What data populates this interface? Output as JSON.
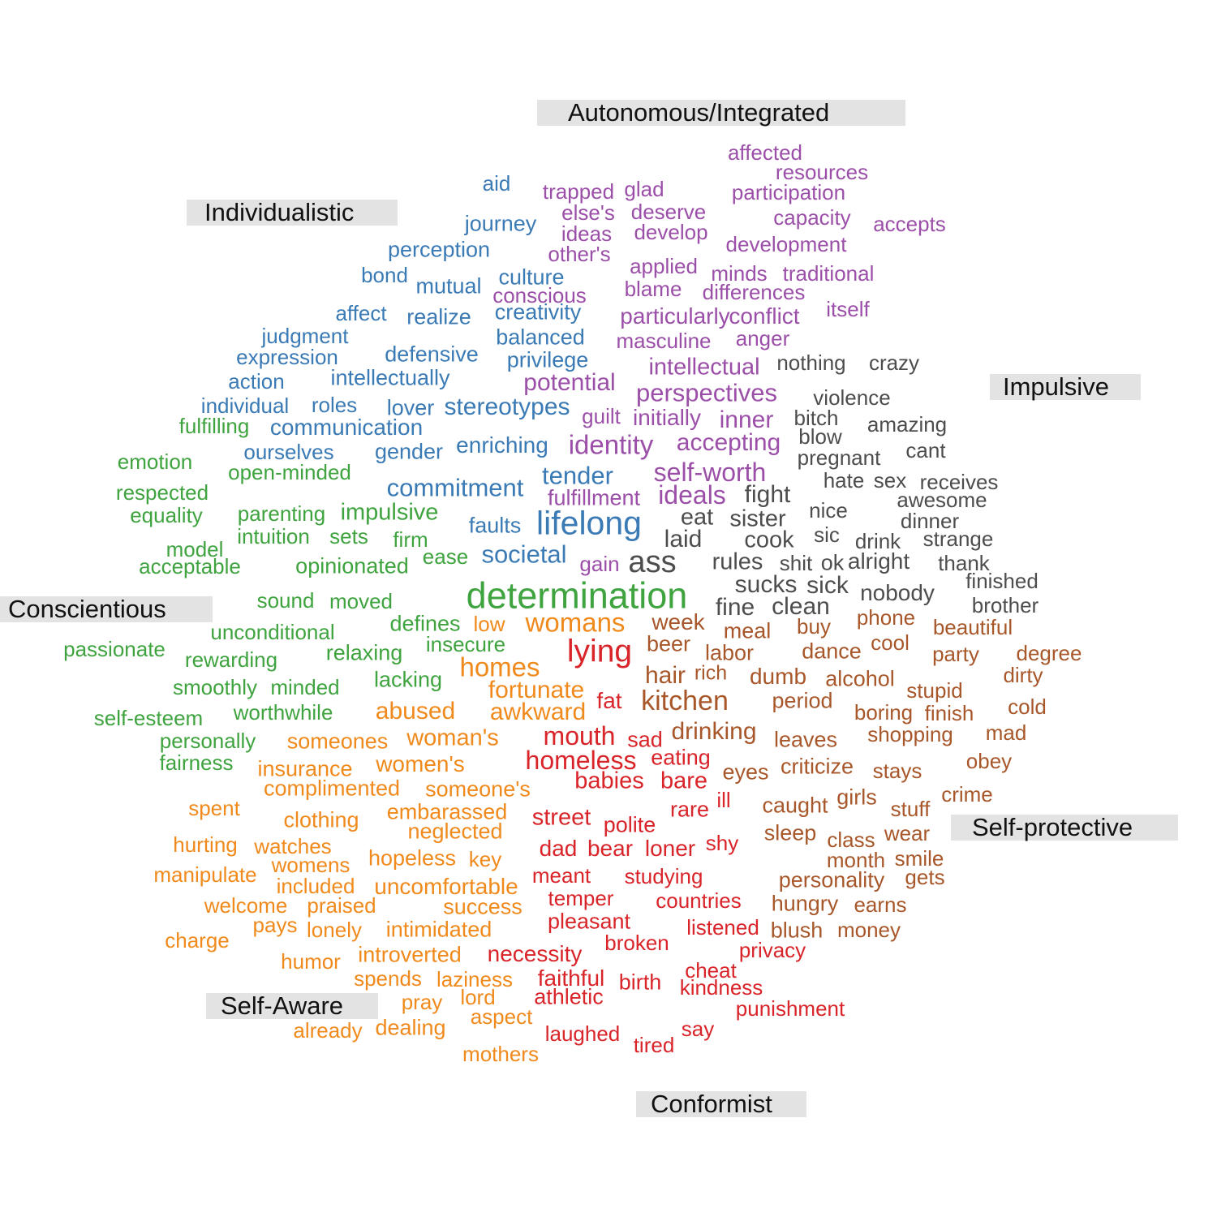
{
  "colors": {
    "blue": "#3a7ab5",
    "purple": "#9b4fa8",
    "gray": "#4d4d4d",
    "green": "#3fa43f",
    "orange": "#f08a1c",
    "brown": "#a8572a",
    "red": "#d9242a"
  },
  "categories": [
    {
      "id": "autonomous",
      "label": "Autonomous/Integrated"
    },
    {
      "id": "individualistic",
      "label": "Individualistic"
    },
    {
      "id": "impulsive",
      "label": "Impulsive"
    },
    {
      "id": "conscientious",
      "label": "Conscientious"
    },
    {
      "id": "self-protective",
      "label": "Self-protective"
    },
    {
      "id": "self-aware",
      "label": "Self-Aware"
    },
    {
      "id": "conformist",
      "label": "Conformist"
    }
  ],
  "words": [
    {
      "t": "aid",
      "c": "blue"
    },
    {
      "t": "journey",
      "c": "blue"
    },
    {
      "t": "perception",
      "c": "blue"
    },
    {
      "t": "bond",
      "c": "blue"
    },
    {
      "t": "mutual",
      "c": "blue"
    },
    {
      "t": "culture",
      "c": "blue"
    },
    {
      "t": "affect",
      "c": "blue"
    },
    {
      "t": "realize",
      "c": "blue"
    },
    {
      "t": "creativity",
      "c": "blue"
    },
    {
      "t": "judgment",
      "c": "blue"
    },
    {
      "t": "balanced",
      "c": "blue"
    },
    {
      "t": "expression",
      "c": "blue"
    },
    {
      "t": "defensive",
      "c": "blue"
    },
    {
      "t": "privilege",
      "c": "blue"
    },
    {
      "t": "action",
      "c": "blue"
    },
    {
      "t": "intellectually",
      "c": "blue"
    },
    {
      "t": "individual",
      "c": "blue"
    },
    {
      "t": "roles",
      "c": "blue"
    },
    {
      "t": "lover",
      "c": "blue"
    },
    {
      "t": "stereotypes",
      "c": "blue"
    },
    {
      "t": "communication",
      "c": "blue"
    },
    {
      "t": "ourselves",
      "c": "blue"
    },
    {
      "t": "gender",
      "c": "blue"
    },
    {
      "t": "enriching",
      "c": "blue"
    },
    {
      "t": "tender",
      "c": "blue"
    },
    {
      "t": "commitment",
      "c": "blue"
    },
    {
      "t": "lifelong",
      "c": "blue"
    },
    {
      "t": "faults",
      "c": "blue"
    },
    {
      "t": "societal",
      "c": "blue"
    },
    {
      "t": "affected",
      "c": "purple"
    },
    {
      "t": "resources",
      "c": "purple"
    },
    {
      "t": "trapped",
      "c": "purple"
    },
    {
      "t": "glad",
      "c": "purple"
    },
    {
      "t": "participation",
      "c": "purple"
    },
    {
      "t": "else's",
      "c": "purple"
    },
    {
      "t": "deserve",
      "c": "purple"
    },
    {
      "t": "capacity",
      "c": "purple"
    },
    {
      "t": "accepts",
      "c": "purple"
    },
    {
      "t": "ideas",
      "c": "purple"
    },
    {
      "t": "develop",
      "c": "purple"
    },
    {
      "t": "development",
      "c": "purple"
    },
    {
      "t": "other's",
      "c": "purple"
    },
    {
      "t": "applied",
      "c": "purple"
    },
    {
      "t": "minds",
      "c": "purple"
    },
    {
      "t": "traditional",
      "c": "purple"
    },
    {
      "t": "conscious",
      "c": "purple"
    },
    {
      "t": "blame",
      "c": "purple"
    },
    {
      "t": "differences",
      "c": "purple"
    },
    {
      "t": "particularly",
      "c": "purple"
    },
    {
      "t": "conflict",
      "c": "purple"
    },
    {
      "t": "itself",
      "c": "purple"
    },
    {
      "t": "masculine",
      "c": "purple"
    },
    {
      "t": "anger",
      "c": "purple"
    },
    {
      "t": "intellectual",
      "c": "purple"
    },
    {
      "t": "potential",
      "c": "purple"
    },
    {
      "t": "perspectives",
      "c": "purple"
    },
    {
      "t": "guilt",
      "c": "purple"
    },
    {
      "t": "initially",
      "c": "purple"
    },
    {
      "t": "inner",
      "c": "purple"
    },
    {
      "t": "identity",
      "c": "purple"
    },
    {
      "t": "accepting",
      "c": "purple"
    },
    {
      "t": "self-worth",
      "c": "purple"
    },
    {
      "t": "fulfillment",
      "c": "purple"
    },
    {
      "t": "ideals",
      "c": "purple"
    },
    {
      "t": "gain",
      "c": "purple"
    },
    {
      "t": "nothing",
      "c": "gray"
    },
    {
      "t": "crazy",
      "c": "gray"
    },
    {
      "t": "violence",
      "c": "gray"
    },
    {
      "t": "bitch",
      "c": "gray"
    },
    {
      "t": "amazing",
      "c": "gray"
    },
    {
      "t": "blow",
      "c": "gray"
    },
    {
      "t": "pregnant",
      "c": "gray"
    },
    {
      "t": "cant",
      "c": "gray"
    },
    {
      "t": "hate",
      "c": "gray"
    },
    {
      "t": "sex",
      "c": "gray"
    },
    {
      "t": "receives",
      "c": "gray"
    },
    {
      "t": "awesome",
      "c": "gray"
    },
    {
      "t": "fight",
      "c": "gray"
    },
    {
      "t": "nice",
      "c": "gray"
    },
    {
      "t": "eat",
      "c": "gray"
    },
    {
      "t": "sister",
      "c": "gray"
    },
    {
      "t": "dinner",
      "c": "gray"
    },
    {
      "t": "laid",
      "c": "gray"
    },
    {
      "t": "cook",
      "c": "gray"
    },
    {
      "t": "sic",
      "c": "gray"
    },
    {
      "t": "drink",
      "c": "gray"
    },
    {
      "t": "strange",
      "c": "gray"
    },
    {
      "t": "ass",
      "c": "gray"
    },
    {
      "t": "rules",
      "c": "gray"
    },
    {
      "t": "shit",
      "c": "gray"
    },
    {
      "t": "ok",
      "c": "gray"
    },
    {
      "t": "alright",
      "c": "gray"
    },
    {
      "t": "thank",
      "c": "gray"
    },
    {
      "t": "finished",
      "c": "gray"
    },
    {
      "t": "sucks",
      "c": "gray"
    },
    {
      "t": "sick",
      "c": "gray"
    },
    {
      "t": "nobody",
      "c": "gray"
    },
    {
      "t": "fine",
      "c": "gray"
    },
    {
      "t": "clean",
      "c": "gray"
    },
    {
      "t": "brother",
      "c": "gray"
    },
    {
      "t": "fulfilling",
      "c": "green"
    },
    {
      "t": "emotion",
      "c": "green"
    },
    {
      "t": "open-minded",
      "c": "green"
    },
    {
      "t": "respected",
      "c": "green"
    },
    {
      "t": "equality",
      "c": "green"
    },
    {
      "t": "parenting",
      "c": "green"
    },
    {
      "t": "impulsive",
      "c": "green"
    },
    {
      "t": "intuition",
      "c": "green"
    },
    {
      "t": "sets",
      "c": "green"
    },
    {
      "t": "firm",
      "c": "green"
    },
    {
      "t": "model",
      "c": "green"
    },
    {
      "t": "acceptable",
      "c": "green"
    },
    {
      "t": "opinionated",
      "c": "green"
    },
    {
      "t": "ease",
      "c": "green"
    },
    {
      "t": "determination",
      "c": "green"
    },
    {
      "t": "sound",
      "c": "green"
    },
    {
      "t": "moved",
      "c": "green"
    },
    {
      "t": "unconditional",
      "c": "green"
    },
    {
      "t": "defines",
      "c": "green"
    },
    {
      "t": "passionate",
      "c": "green"
    },
    {
      "t": "rewarding",
      "c": "green"
    },
    {
      "t": "relaxing",
      "c": "green"
    },
    {
      "t": "insecure",
      "c": "green"
    },
    {
      "t": "lacking",
      "c": "green"
    },
    {
      "t": "smoothly",
      "c": "green"
    },
    {
      "t": "minded",
      "c": "green"
    },
    {
      "t": "worthwhile",
      "c": "green"
    },
    {
      "t": "self-esteem",
      "c": "green"
    },
    {
      "t": "personally",
      "c": "green"
    },
    {
      "t": "fairness",
      "c": "green"
    },
    {
      "t": "low",
      "c": "orange"
    },
    {
      "t": "womans",
      "c": "orange"
    },
    {
      "t": "homes",
      "c": "orange"
    },
    {
      "t": "fortunate",
      "c": "orange"
    },
    {
      "t": "abused",
      "c": "orange"
    },
    {
      "t": "awkward",
      "c": "orange"
    },
    {
      "t": "someones",
      "c": "orange"
    },
    {
      "t": "woman's",
      "c": "orange"
    },
    {
      "t": "insurance",
      "c": "orange"
    },
    {
      "t": "women's",
      "c": "orange"
    },
    {
      "t": "complimented",
      "c": "orange"
    },
    {
      "t": "someone's",
      "c": "orange"
    },
    {
      "t": "spent",
      "c": "orange"
    },
    {
      "t": "clothing",
      "c": "orange"
    },
    {
      "t": "embarassed",
      "c": "orange"
    },
    {
      "t": "neglected",
      "c": "orange"
    },
    {
      "t": "hurting",
      "c": "orange"
    },
    {
      "t": "watches",
      "c": "orange"
    },
    {
      "t": "womens",
      "c": "orange"
    },
    {
      "t": "hopeless",
      "c": "orange"
    },
    {
      "t": "key",
      "c": "orange"
    },
    {
      "t": "manipulate",
      "c": "orange"
    },
    {
      "t": "included",
      "c": "orange"
    },
    {
      "t": "uncomfortable",
      "c": "orange"
    },
    {
      "t": "welcome",
      "c": "orange"
    },
    {
      "t": "praised",
      "c": "orange"
    },
    {
      "t": "success",
      "c": "orange"
    },
    {
      "t": "pays",
      "c": "orange"
    },
    {
      "t": "lonely",
      "c": "orange"
    },
    {
      "t": "intimidated",
      "c": "orange"
    },
    {
      "t": "charge",
      "c": "orange"
    },
    {
      "t": "humor",
      "c": "orange"
    },
    {
      "t": "introverted",
      "c": "orange"
    },
    {
      "t": "spends",
      "c": "orange"
    },
    {
      "t": "laziness",
      "c": "orange"
    },
    {
      "t": "pray",
      "c": "orange"
    },
    {
      "t": "lord",
      "c": "orange"
    },
    {
      "t": "aspect",
      "c": "orange"
    },
    {
      "t": "already",
      "c": "orange"
    },
    {
      "t": "dealing",
      "c": "orange"
    },
    {
      "t": "mothers",
      "c": "orange"
    },
    {
      "t": "week",
      "c": "brown"
    },
    {
      "t": "meal",
      "c": "brown"
    },
    {
      "t": "buy",
      "c": "brown"
    },
    {
      "t": "phone",
      "c": "brown"
    },
    {
      "t": "beautiful",
      "c": "brown"
    },
    {
      "t": "beer",
      "c": "brown"
    },
    {
      "t": "labor",
      "c": "brown"
    },
    {
      "t": "dance",
      "c": "brown"
    },
    {
      "t": "cool",
      "c": "brown"
    },
    {
      "t": "party",
      "c": "brown"
    },
    {
      "t": "degree",
      "c": "brown"
    },
    {
      "t": "hair",
      "c": "brown"
    },
    {
      "t": "rich",
      "c": "brown"
    },
    {
      "t": "dumb",
      "c": "brown"
    },
    {
      "t": "alcohol",
      "c": "brown"
    },
    {
      "t": "stupid",
      "c": "brown"
    },
    {
      "t": "dirty",
      "c": "brown"
    },
    {
      "t": "kitchen",
      "c": "brown"
    },
    {
      "t": "period",
      "c": "brown"
    },
    {
      "t": "boring",
      "c": "brown"
    },
    {
      "t": "finish",
      "c": "brown"
    },
    {
      "t": "cold",
      "c": "brown"
    },
    {
      "t": "drinking",
      "c": "brown"
    },
    {
      "t": "leaves",
      "c": "brown"
    },
    {
      "t": "shopping",
      "c": "brown"
    },
    {
      "t": "mad",
      "c": "brown"
    },
    {
      "t": "eyes",
      "c": "brown"
    },
    {
      "t": "criticize",
      "c": "brown"
    },
    {
      "t": "stays",
      "c": "brown"
    },
    {
      "t": "obey",
      "c": "brown"
    },
    {
      "t": "caught",
      "c": "brown"
    },
    {
      "t": "girls",
      "c": "brown"
    },
    {
      "t": "stuff",
      "c": "brown"
    },
    {
      "t": "crime",
      "c": "brown"
    },
    {
      "t": "sleep",
      "c": "brown"
    },
    {
      "t": "class",
      "c": "brown"
    },
    {
      "t": "wear",
      "c": "brown"
    },
    {
      "t": "month",
      "c": "brown"
    },
    {
      "t": "smile",
      "c": "brown"
    },
    {
      "t": "personality",
      "c": "brown"
    },
    {
      "t": "gets",
      "c": "brown"
    },
    {
      "t": "hungry",
      "c": "brown"
    },
    {
      "t": "earns",
      "c": "brown"
    },
    {
      "t": "blush",
      "c": "brown"
    },
    {
      "t": "money",
      "c": "brown"
    },
    {
      "t": "lying",
      "c": "red"
    },
    {
      "t": "fat",
      "c": "red"
    },
    {
      "t": "mouth",
      "c": "red"
    },
    {
      "t": "sad",
      "c": "red"
    },
    {
      "t": "homeless",
      "c": "red"
    },
    {
      "t": "eating",
      "c": "red"
    },
    {
      "t": "babies",
      "c": "red"
    },
    {
      "t": "bare",
      "c": "red"
    },
    {
      "t": "ill",
      "c": "red"
    },
    {
      "t": "rare",
      "c": "red"
    },
    {
      "t": "street",
      "c": "red"
    },
    {
      "t": "polite",
      "c": "red"
    },
    {
      "t": "shy",
      "c": "red"
    },
    {
      "t": "dad",
      "c": "red"
    },
    {
      "t": "bear",
      "c": "red"
    },
    {
      "t": "loner",
      "c": "red"
    },
    {
      "t": "meant",
      "c": "red"
    },
    {
      "t": "studying",
      "c": "red"
    },
    {
      "t": "temper",
      "c": "red"
    },
    {
      "t": "countries",
      "c": "red"
    },
    {
      "t": "pleasant",
      "c": "red"
    },
    {
      "t": "listened",
      "c": "red"
    },
    {
      "t": "broken",
      "c": "red"
    },
    {
      "t": "privacy",
      "c": "red"
    },
    {
      "t": "necessity",
      "c": "red"
    },
    {
      "t": "cheat",
      "c": "red"
    },
    {
      "t": "faithful",
      "c": "red"
    },
    {
      "t": "birth",
      "c": "red"
    },
    {
      "t": "kindness",
      "c": "red"
    },
    {
      "t": "athletic",
      "c": "red"
    },
    {
      "t": "punishment",
      "c": "red"
    },
    {
      "t": "say",
      "c": "red"
    },
    {
      "t": "laughed",
      "c": "red"
    },
    {
      "t": "tired",
      "c": "red"
    }
  ]
}
